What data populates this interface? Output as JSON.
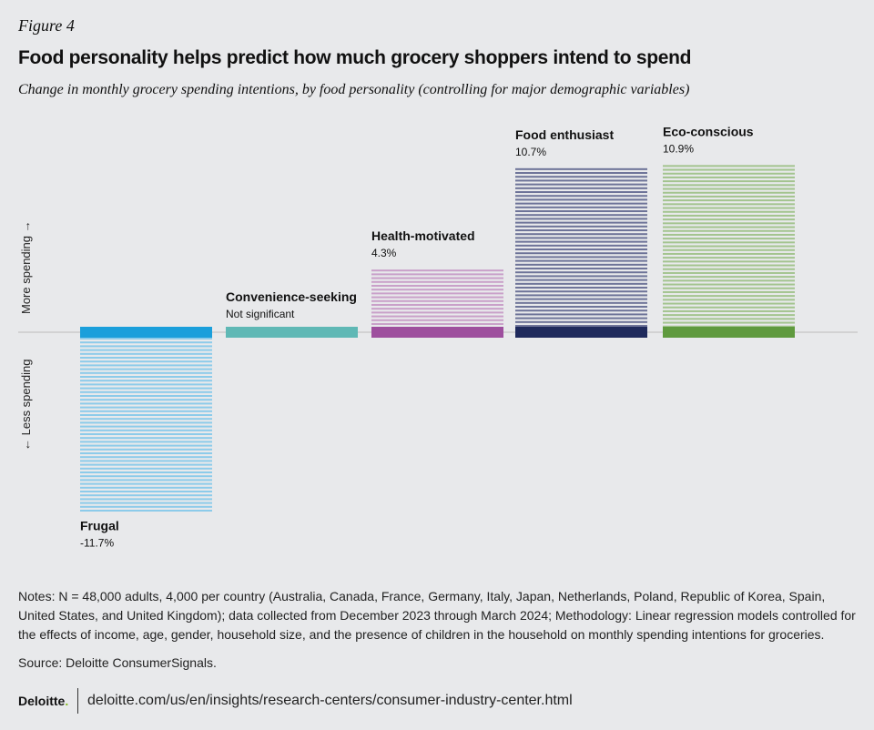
{
  "figure_label": "Figure 4",
  "source": "Source: Deloitte ConsumerSignals.",
  "notes": "Notes: N = 48,000 adults, 4,000 per country (Australia,  Canada, France, Germany, Italy, Japan, Netherlands, Poland, Republic of Korea, Spain, United States, and United Kingdom); data collected from December 2023 through March 2024; Methodology: Linear regression models controlled for the effects of income, age, gender, household size, and the presence of children in the household on monthly spending intentions for groceries.",
  "logo": "Deloitte",
  "url": "deloitte.com/us/en/insights/research-centers/consumer-industry-center.html",
  "chart_data": {
    "type": "bar",
    "title": "Food personality helps predict how much grocery shoppers intend to spend",
    "subtitle": "Change in monthly grocery spending intentions, by food personality (controlling for major demographic variables)",
    "ylabel_up": "More spending →",
    "ylabel_down": "← Less spending",
    "unit": "%",
    "categories": [
      "Frugal",
      "Convenience-seeking",
      "Health-motivated",
      "Food enthusiast",
      "Eco-conscious"
    ],
    "values": [
      -11.7,
      0,
      4.3,
      10.7,
      10.9
    ],
    "labels": [
      "-11.7%",
      "Not significant",
      "4.3%",
      "10.7%",
      "10.9%"
    ],
    "colors": [
      "#1a9fdb",
      "#5fb8b5",
      "#9e4f9e",
      "#1f2a5c",
      "#5f9a3e"
    ],
    "stripe_colors": [
      "#8ccbea",
      "#a9d8d6",
      "#c9a0c9",
      "#6d7398",
      "#a3c48e"
    ]
  }
}
